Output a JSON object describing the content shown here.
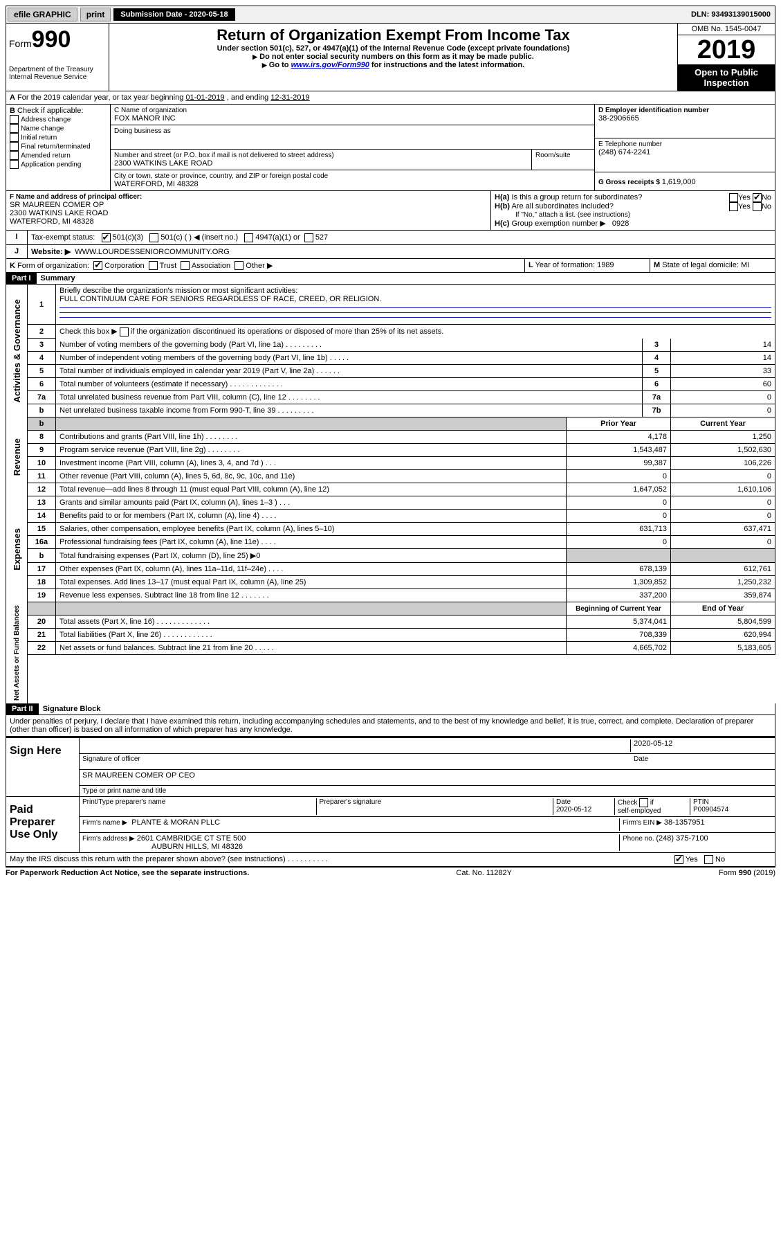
{
  "topbar": {
    "efile": "efile GRAPHIC",
    "print": "print",
    "sub_label": "Submission Date - 2020-05-18",
    "dln": "DLN: 93493139015000"
  },
  "header": {
    "form_word": "Form",
    "form_no": "990",
    "dept1": "Department of the Treasury",
    "dept2": "Internal Revenue Service",
    "title": "Return of Organization Exempt From Income Tax",
    "subtitle": "Under section 501(c), 527, or 4947(a)(1) of the Internal Revenue Code (except private foundations)",
    "note1": "Do not enter social security numbers on this form as it may be made public.",
    "note2_pre": "Go to ",
    "note2_link": "www.irs.gov/Form990",
    "note2_post": " for instructions and the latest information.",
    "omb": "OMB No. 1545-0047",
    "year": "2019",
    "open": "Open to Public Inspection"
  },
  "A": {
    "text_pre": "For the 2019 calendar year, or tax year beginning ",
    "begin": "01-01-2019",
    "mid": " , and ending ",
    "end": "12-31-2019"
  },
  "B": {
    "label": "Check if applicable:",
    "items": [
      "Address change",
      "Name change",
      "Initial return",
      "Final return/terminated",
      "Amended return",
      "Application pending"
    ]
  },
  "C": {
    "name_label": "C Name of organization",
    "name": "FOX MANOR INC",
    "dba_label": "Doing business as",
    "street_label": "Number and street (or P.O. box if mail is not delivered to street address)",
    "room_label": "Room/suite",
    "street": "2300 WATKINS LAKE ROAD",
    "city_label": "City or town, state or province, country, and ZIP or foreign postal code",
    "city": "WATERFORD, MI  48328"
  },
  "D": {
    "label": "D Employer identification number",
    "value": "38-2906665"
  },
  "E": {
    "label": "E Telephone number",
    "value": "(248) 674-2241"
  },
  "G": {
    "label": "G Gross receipts $ ",
    "value": "1,619,000"
  },
  "F": {
    "label": "F  Name and address of principal officer:",
    "line1": "SR MAUREEN COMER OP",
    "line2": "2300 WATKINS LAKE ROAD",
    "line3": "WATERFORD, MI  48328"
  },
  "H": {
    "a_label": "Is this a group return for subordinates?",
    "b_label": "Are all subordinates included?",
    "b_note": "If \"No,\" attach a list. (see instructions)",
    "c_label": "Group exemption number ▶",
    "c_value": "0928",
    "yes": "Yes",
    "no": "No"
  },
  "I": {
    "label": "Tax-exempt status:",
    "c3": "501(c)(3)",
    "c": "501(c) (   ) ◀ (insert no.)",
    "a1": "4947(a)(1) or",
    "s527": "527"
  },
  "J": {
    "label": "Website: ▶",
    "value": "WWW.LOURDESSENIORCOMMUNITY.ORG"
  },
  "K": {
    "label": "Form of organization:",
    "opts": [
      "Corporation",
      "Trust",
      "Association",
      "Other ▶"
    ]
  },
  "L": {
    "label": "Year of formation: ",
    "value": "1989"
  },
  "M": {
    "label": "State of legal domicile: ",
    "value": "MI"
  },
  "part1": {
    "header": "Part I",
    "title": "Summary",
    "q1_label": "Briefly describe the organization's mission or most significant activities:",
    "q1_value": "FULL CONTINUUM CARE FOR SENIORS REGARDLESS OF RACE, CREED, OR RELIGION.",
    "q2_label": "Check this box ▶",
    "q2_text": "if the organization discontinued its operations or disposed of more than 25% of its net assets.",
    "side_gov": "Activities & Governance",
    "side_rev": "Revenue",
    "side_exp": "Expenses",
    "side_net": "Net Assets or Fund Balances",
    "col_prior": "Prior Year",
    "col_current": "Current Year",
    "col_beg": "Beginning of Current Year",
    "col_end": "End of Year",
    "gov_lines": [
      {
        "n": "3",
        "desc": "Number of voting members of the governing body (Part VI, line 1a)   .    .    .    .    .    .    .    .    .",
        "ln": "3",
        "v": "14"
      },
      {
        "n": "4",
        "desc": "Number of independent voting members of the governing body (Part VI, line 1b)   .    .    .    .    .",
        "ln": "4",
        "v": "14"
      },
      {
        "n": "5",
        "desc": "Total number of individuals employed in calendar year 2019 (Part V, line 2a)   .    .    .    .    .    .",
        "ln": "5",
        "v": "33"
      },
      {
        "n": "6",
        "desc": "Total number of volunteers (estimate if necessary)   .    .    .    .    .    .    .    .    .    .    .    .    .",
        "ln": "6",
        "v": "60"
      },
      {
        "n": "7a",
        "desc": "Total unrelated business revenue from Part VIII, column (C), line 12   .    .    .    .    .    .    .    .",
        "ln": "7a",
        "v": "0"
      },
      {
        "n": "b",
        "desc": "Net unrelated business taxable income from Form 990-T, line 39   .    .    .    .    .    .    .    .    .",
        "ln": "7b",
        "v": "0"
      }
    ],
    "rev_lines": [
      {
        "n": "8",
        "desc": "Contributions and grants (Part VIII, line 1h)   .    .    .    .    .    .    .    .",
        "p": "4,178",
        "c": "1,250"
      },
      {
        "n": "9",
        "desc": "Program service revenue (Part VIII, line 2g)   .    .    .    .    .    .    .    .",
        "p": "1,543,487",
        "c": "1,502,630"
      },
      {
        "n": "10",
        "desc": "Investment income (Part VIII, column (A), lines 3, 4, and 7d )   .    .    .",
        "p": "99,387",
        "c": "106,226"
      },
      {
        "n": "11",
        "desc": "Other revenue (Part VIII, column (A), lines 5, 6d, 8c, 9c, 10c, and 11e)",
        "p": "0",
        "c": "0"
      },
      {
        "n": "12",
        "desc": "Total revenue—add lines 8 through 11 (must equal Part VIII, column (A), line 12)",
        "p": "1,647,052",
        "c": "1,610,106"
      }
    ],
    "exp_lines": [
      {
        "n": "13",
        "desc": "Grants and similar amounts paid (Part IX, column (A), lines 1–3 )   .    .    .",
        "p": "0",
        "c": "0"
      },
      {
        "n": "14",
        "desc": "Benefits paid to or for members (Part IX, column (A), line 4)   .    .    .    .",
        "p": "0",
        "c": "0"
      },
      {
        "n": "15",
        "desc": "Salaries, other compensation, employee benefits (Part IX, column (A), lines 5–10)",
        "p": "631,713",
        "c": "637,471"
      },
      {
        "n": "16a",
        "desc": "Professional fundraising fees (Part IX, column (A), line 11e)   .    .    .    .",
        "p": "0",
        "c": "0"
      },
      {
        "n": "b",
        "desc": "Total fundraising expenses (Part IX, column (D), line 25) ▶0",
        "p": "",
        "c": "",
        "gray": true
      },
      {
        "n": "17",
        "desc": "Other expenses (Part IX, column (A), lines 11a–11d, 11f–24e)   .    .    .    .",
        "p": "678,139",
        "c": "612,761"
      },
      {
        "n": "18",
        "desc": "Total expenses. Add lines 13–17 (must equal Part IX, column (A), line 25)",
        "p": "1,309,852",
        "c": "1,250,232"
      },
      {
        "n": "19",
        "desc": "Revenue less expenses. Subtract line 18 from line 12   .    .    .    .    .    .    .",
        "p": "337,200",
        "c": "359,874"
      }
    ],
    "net_lines": [
      {
        "n": "20",
        "desc": "Total assets (Part X, line 16)   .    .    .    .    .    .    .    .    .    .    .    .    .",
        "p": "5,374,041",
        "c": "5,804,599"
      },
      {
        "n": "21",
        "desc": "Total liabilities (Part X, line 26)   .    .    .    .    .    .    .    .    .    .    .    .",
        "p": "708,339",
        "c": "620,994"
      },
      {
        "n": "22",
        "desc": "Net assets or fund balances. Subtract line 21 from line 20   .    .    .    .    .",
        "p": "4,665,702",
        "c": "5,183,605"
      }
    ]
  },
  "part2": {
    "header": "Part II",
    "title": "Signature Block",
    "perjury": "Under penalties of perjury, I declare that I have examined this return, including accompanying schedules and statements, and to the best of my knowledge and belief, it is true, correct, and complete. Declaration of preparer (other than officer) is based on all information of which preparer has any knowledge.",
    "sign_here": "Sign Here",
    "sig_officer": "Signature of officer",
    "sig_date": "2020-05-12",
    "date_label": "Date",
    "officer_name": "SR MAUREEN COMER OP CEO",
    "type_name": "Type or print name and title",
    "paid_prep": "Paid Preparer Use Only",
    "prep_name_label": "Print/Type preparer's name",
    "prep_sig_label": "Preparer's signature",
    "prep_date_label": "Date",
    "prep_date": "2020-05-12",
    "check_self": "Check",
    "self_emp": "self-employed",
    "if": "if",
    "ptin_label": "PTIN",
    "ptin": "P00904574",
    "firm_name_label": "Firm's name    ▶",
    "firm_name": "PLANTE & MORAN PLLC",
    "firm_ein_label": "Firm's EIN ▶",
    "firm_ein": "38-1357951",
    "firm_addr_label": "Firm's address ▶",
    "firm_addr1": "2601 CAMBRIDGE CT STE 500",
    "firm_addr2": "AUBURN HILLS, MI  48326",
    "phone_label": "Phone no. ",
    "phone": "(248) 375-7100",
    "may_irs": "May the IRS discuss this return with the preparer shown above? (see instructions)   .    .    .    .    .    .    .    .    .    .",
    "yes": "Yes",
    "no": "No"
  },
  "footer": {
    "left": "For Paperwork Reduction Act Notice, see the separate instructions.",
    "mid": "Cat. No. 11282Y",
    "right": "Form 990 (2019)"
  }
}
